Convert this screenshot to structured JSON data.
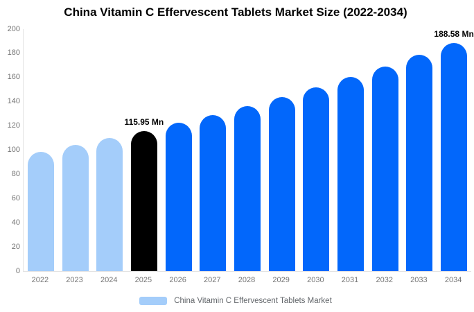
{
  "chart": {
    "title": "China Vitamin C Effervescent Tablets Market Size (2022-2034)"
  },
  "chart_data": {
    "type": "bar",
    "title": "China Vitamin C Effervescent Tablets Market Size (2022-2034)",
    "categories": [
      "2022",
      "2023",
      "2024",
      "2025",
      "2026",
      "2027",
      "2028",
      "2029",
      "2030",
      "2031",
      "2032",
      "2033",
      "2034"
    ],
    "values": [
      98.6,
      104.1,
      109.9,
      115.95,
      122.4,
      129.2,
      136.4,
      143.9,
      151.9,
      160.4,
      169.3,
      178.7,
      188.58
    ],
    "unit": "Mn",
    "xlabel": "",
    "ylabel": "",
    "ylim": [
      0,
      200
    ],
    "yticks": [
      0,
      20,
      40,
      60,
      80,
      100,
      120,
      140,
      160,
      180,
      200
    ],
    "grid": false,
    "legend_position": "bottom",
    "bar_colors": [
      "#a4cdfa",
      "#a4cdfa",
      "#a4cdfa",
      "#000000",
      "#0267fb",
      "#0267fb",
      "#0267fb",
      "#0267fb",
      "#0267fb",
      "#0267fb",
      "#0267fb",
      "#0267fb",
      "#0267fb"
    ],
    "annotations": [
      {
        "category": "2025",
        "text": "115.95 Mn"
      },
      {
        "category": "2034",
        "text": "188.58 Mn"
      }
    ]
  },
  "legend": {
    "label": "China Vitamin C Effervescent Tablets Market",
    "swatch_color": "#a4cdfa"
  },
  "colors": {
    "historical_bar": "#a4cdfa",
    "highlight_bar": "#000000",
    "forecast_bar": "#0267fb",
    "axis_text": "#757575",
    "axis_line": "#e3e3e3",
    "title_text": "#000000",
    "background": "#ffffff"
  }
}
